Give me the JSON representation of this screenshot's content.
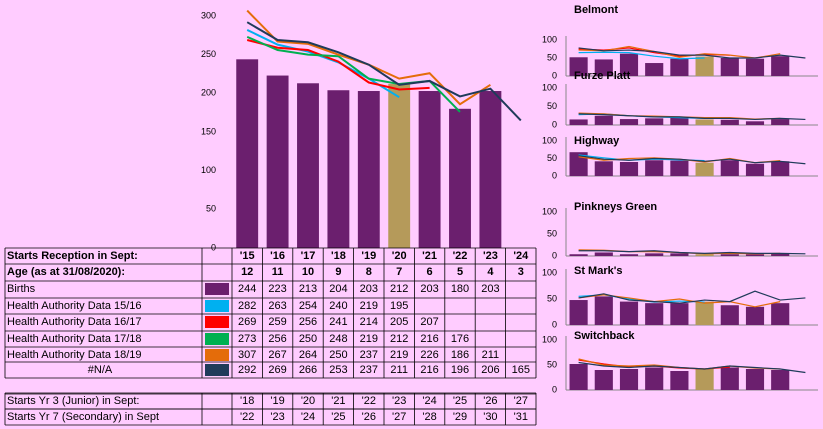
{
  "chart_data": [
    {
      "type": "bar",
      "categories": [
        "'15",
        "'16",
        "'17",
        "'18",
        "'19",
        "'20",
        "'21",
        "'22",
        "'23",
        "'24"
      ],
      "ylim": [
        0,
        300
      ],
      "yticks": [
        0,
        50,
        100,
        150,
        200,
        250,
        300
      ],
      "series": [
        {
          "name": "Births",
          "type": "bar",
          "colors": [
            "#6b1f6e",
            "#6b1f6e",
            "#6b1f6e",
            "#6b1f6e",
            "#6b1f6e",
            "#b59a5a",
            "#6b1f6e",
            "#6b1f6e",
            "#6b1f6e",
            "#6b1f6e"
          ],
          "values": [
            244,
            223,
            213,
            204,
            203,
            212,
            203,
            180,
            203,
            null
          ]
        },
        {
          "name": "Health Authority Data 15/16",
          "type": "line",
          "color": "#00b0f0",
          "values": [
            282,
            263,
            254,
            240,
            219,
            195,
            null,
            null,
            null,
            null
          ]
        },
        {
          "name": "Health Authority Data 16/17",
          "type": "line",
          "color": "#ff0000",
          "values": [
            269,
            259,
            256,
            241,
            214,
            205,
            207,
            null,
            null,
            null
          ]
        },
        {
          "name": "Health Authority Data 17/18",
          "type": "line",
          "color": "#00b050",
          "values": [
            273,
            256,
            250,
            248,
            219,
            212,
            216,
            176,
            null,
            null
          ]
        },
        {
          "name": "Health Authority Data 18/19",
          "type": "line",
          "color": "#e46c0a",
          "values": [
            307,
            267,
            264,
            250,
            237,
            219,
            226,
            186,
            211,
            null
          ]
        },
        {
          "name": "#N/A",
          "type": "line",
          "color": "#1f3b5a",
          "values": [
            292,
            269,
            266,
            253,
            237,
            211,
            216,
            196,
            206,
            165
          ]
        }
      ]
    },
    {
      "type": "bar",
      "title": "Belmont",
      "ylim": [
        0,
        100
      ],
      "yticks": [
        0,
        50,
        100
      ],
      "series": [
        {
          "type": "bar",
          "colors": [
            "#6b1f6e",
            "#6b1f6e",
            "#6b1f6e",
            "#6b1f6e",
            "#6b1f6e",
            "#b59a5a",
            "#6b1f6e",
            "#6b1f6e",
            "#6b1f6e",
            "#6b1f6e"
          ],
          "values": [
            52,
            46,
            62,
            36,
            48,
            54,
            50,
            48,
            55,
            null
          ]
        },
        {
          "type": "line",
          "color": "#00b0f0",
          "values": [
            65,
            66,
            65,
            55,
            48,
            50,
            null,
            null,
            null,
            null
          ]
        },
        {
          "type": "line",
          "color": "#ff0000",
          "values": [
            75,
            72,
            78,
            65,
            55,
            60,
            58,
            null,
            null,
            null
          ]
        },
        {
          "type": "line",
          "color": "#e46c0a",
          "values": [
            72,
            70,
            82,
            68,
            52,
            62,
            58,
            50,
            62,
            null
          ]
        },
        {
          "type": "line",
          "color": "#1f3b5a",
          "values": [
            78,
            70,
            72,
            68,
            58,
            58,
            50,
            50,
            58,
            50
          ]
        }
      ]
    },
    {
      "type": "bar",
      "title": "Furze Platt",
      "ylim": [
        0,
        100
      ],
      "yticks": [
        0,
        50,
        100
      ],
      "series": [
        {
          "type": "bar",
          "colors": [
            "#6b1f6e",
            "#6b1f6e",
            "#6b1f6e",
            "#6b1f6e",
            "#6b1f6e",
            "#b59a5a",
            "#6b1f6e",
            "#6b1f6e",
            "#6b1f6e",
            "#6b1f6e"
          ],
          "values": [
            15,
            25,
            16,
            18,
            22,
            15,
            14,
            10,
            16,
            null
          ]
        },
        {
          "type": "line",
          "color": "#00b0f0",
          "values": [
            28,
            30,
            25,
            22,
            20,
            18,
            null,
            null,
            null,
            null
          ]
        },
        {
          "type": "line",
          "color": "#e46c0a",
          "values": [
            32,
            30,
            25,
            24,
            22,
            20,
            20,
            16,
            18,
            null
          ]
        },
        {
          "type": "line",
          "color": "#1f3b5a",
          "values": [
            30,
            28,
            25,
            22,
            22,
            18,
            18,
            15,
            18,
            15
          ]
        }
      ]
    },
    {
      "type": "bar",
      "title": "Highway",
      "ylim": [
        0,
        100
      ],
      "yticks": [
        0,
        50,
        100
      ],
      "series": [
        {
          "type": "bar",
          "colors": [
            "#6b1f6e",
            "#6b1f6e",
            "#6b1f6e",
            "#6b1f6e",
            "#6b1f6e",
            "#b59a5a",
            "#6b1f6e",
            "#6b1f6e",
            "#6b1f6e",
            "#6b1f6e"
          ],
          "values": [
            68,
            42,
            40,
            45,
            44,
            38,
            45,
            35,
            42,
            null
          ]
        },
        {
          "type": "line",
          "color": "#00b0f0",
          "values": [
            60,
            52,
            45,
            48,
            46,
            44,
            null,
            null,
            null,
            null
          ]
        },
        {
          "type": "line",
          "color": "#e46c0a",
          "values": [
            55,
            45,
            50,
            52,
            48,
            40,
            50,
            38,
            44,
            null
          ]
        },
        {
          "type": "line",
          "color": "#1f3b5a",
          "values": [
            58,
            48,
            45,
            50,
            48,
            42,
            48,
            38,
            42,
            35
          ]
        }
      ]
    },
    {
      "type": "bar",
      "title": "Pinkneys Green",
      "ylim": [
        0,
        100
      ],
      "yticks": [
        0,
        50,
        100
      ],
      "series": [
        {
          "type": "bar",
          "colors": [
            "#6b1f6e",
            "#6b1f6e",
            "#6b1f6e",
            "#6b1f6e",
            "#6b1f6e",
            "#b59a5a",
            "#6b1f6e",
            "#6b1f6e",
            "#6b1f6e",
            "#6b1f6e"
          ],
          "values": [
            4,
            8,
            4,
            6,
            6,
            4,
            4,
            4,
            6,
            null
          ]
        },
        {
          "type": "line",
          "color": "#e46c0a",
          "values": [
            14,
            13,
            10,
            10,
            8,
            5,
            6,
            5,
            6,
            null
          ]
        },
        {
          "type": "line",
          "color": "#1f3b5a",
          "values": [
            12,
            12,
            10,
            12,
            8,
            6,
            8,
            6,
            6,
            5
          ]
        }
      ]
    },
    {
      "type": "bar",
      "title": "St Mark's",
      "ylim": [
        0,
        100
      ],
      "yticks": [
        0,
        50,
        100
      ],
      "series": [
        {
          "type": "bar",
          "colors": [
            "#6b1f6e",
            "#6b1f6e",
            "#6b1f6e",
            "#6b1f6e",
            "#6b1f6e",
            "#b59a5a",
            "#6b1f6e",
            "#6b1f6e",
            "#6b1f6e",
            "#6b1f6e"
          ],
          "values": [
            48,
            55,
            45,
            42,
            42,
            45,
            38,
            35,
            42,
            null
          ]
        },
        {
          "type": "line",
          "color": "#00b0f0",
          "values": [
            55,
            58,
            50,
            44,
            46,
            44,
            null,
            null,
            null,
            null
          ]
        },
        {
          "type": "line",
          "color": "#e46c0a",
          "values": [
            52,
            58,
            52,
            45,
            50,
            42,
            45,
            35,
            45,
            null
          ]
        },
        {
          "type": "line",
          "color": "#1f3b5a",
          "values": [
            52,
            60,
            48,
            45,
            42,
            48,
            45,
            65,
            48,
            52
          ]
        }
      ]
    },
    {
      "type": "bar",
      "title": "Switchback",
      "ylim": [
        0,
        100
      ],
      "yticks": [
        0,
        50,
        100
      ],
      "series": [
        {
          "type": "bar",
          "colors": [
            "#6b1f6e",
            "#6b1f6e",
            "#6b1f6e",
            "#6b1f6e",
            "#6b1f6e",
            "#b59a5a",
            "#6b1f6e",
            "#6b1f6e",
            "#6b1f6e",
            "#6b1f6e"
          ],
          "values": [
            52,
            40,
            42,
            45,
            38,
            42,
            45,
            42,
            40,
            null
          ]
        },
        {
          "type": "line",
          "color": "#ff0000",
          "values": [
            60,
            52,
            46,
            48,
            44,
            42,
            46,
            null,
            null,
            null
          ]
        },
        {
          "type": "line",
          "color": "#e46c0a",
          "values": [
            62,
            50,
            48,
            50,
            45,
            42,
            48,
            44,
            42,
            null
          ]
        },
        {
          "type": "line",
          "color": "#1f3b5a",
          "values": [
            55,
            48,
            45,
            48,
            45,
            42,
            48,
            45,
            42,
            35
          ]
        }
      ]
    }
  ],
  "table": {
    "row_header": "Starts Reception in Sept:",
    "age_header": "Age (as at 31/08/2020):",
    "ages": [
      12,
      11,
      10,
      9,
      8,
      7,
      6,
      5,
      4,
      3
    ],
    "junior_label": "Starts Yr 3 (Junior) in Sept:",
    "junior_years": [
      "'18",
      "'19",
      "'20",
      "'21",
      "'22",
      "'23",
      "'24",
      "'25",
      "'26",
      "'27"
    ],
    "secondary_label": "Starts Yr 7 (Secondary) in Sept",
    "secondary_years": [
      "'22",
      "'23",
      "'24",
      "'25",
      "'26",
      "'27",
      "'28",
      "'29",
      "'30",
      "'31"
    ]
  }
}
